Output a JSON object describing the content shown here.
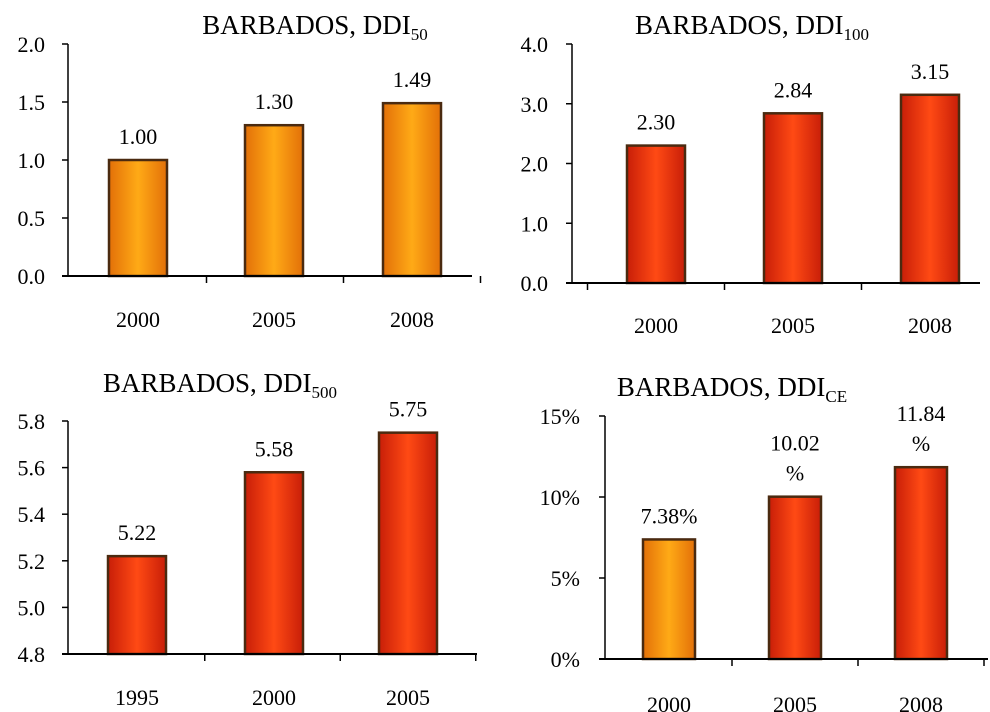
{
  "charts": [
    {
      "title_main": "BARBADOS, DDI",
      "title_sub": "50",
      "chart_data": {
        "type": "bar",
        "categories": [
          "2000",
          "2005",
          "2008"
        ],
        "values": [
          1.0,
          1.3,
          1.49
        ],
        "data_labels": [
          "1.00",
          "1.30",
          "1.49"
        ],
        "ylim": [
          0,
          2.0
        ],
        "yticks": [
          "0.0",
          "0.5",
          "1.0",
          "1.5",
          "2.0"
        ],
        "grid": false
      },
      "bar_colors": [
        "orange",
        "orange",
        "orange"
      ]
    },
    {
      "title_main": "BARBADOS, DDI",
      "title_sub": "100",
      "chart_data": {
        "type": "bar",
        "categories": [
          "2000",
          "2005",
          "2008"
        ],
        "values": [
          2.3,
          2.84,
          3.15
        ],
        "data_labels": [
          "2.30",
          "2.84",
          "3.15"
        ],
        "ylim": [
          0,
          4.0
        ],
        "yticks": [
          "0.0",
          "1.0",
          "2.0",
          "3.0",
          "4.0"
        ],
        "grid": false
      },
      "bar_colors": [
        "red",
        "red",
        "red"
      ]
    },
    {
      "title_main": "BARBADOS, DDI",
      "title_sub": "500",
      "chart_data": {
        "type": "bar",
        "categories": [
          "1995",
          "2000",
          "2005"
        ],
        "values": [
          5.22,
          5.58,
          5.75
        ],
        "data_labels": [
          "5.22",
          "5.58",
          "5.75"
        ],
        "ylim": [
          4.8,
          5.8
        ],
        "yticks": [
          "4.8",
          "5.0",
          "5.2",
          "5.4",
          "5.6",
          "5.8"
        ],
        "grid": false
      },
      "bar_colors": [
        "red",
        "red",
        "red"
      ]
    },
    {
      "title_main": "BARBADOS, DDI",
      "title_sub": "CE",
      "chart_data": {
        "type": "bar",
        "categories": [
          "2000",
          "2005",
          "2008"
        ],
        "values": [
          7.38,
          10.02,
          11.84
        ],
        "data_labels": [
          [
            "7.38%"
          ],
          [
            "10.02",
            "%"
          ],
          [
            "11.84",
            "%"
          ]
        ],
        "ylim": [
          0,
          15
        ],
        "yticks": [
          "0%",
          "5%",
          "10%",
          "15%"
        ],
        "grid": false
      },
      "bar_colors": [
        "orange",
        "red",
        "red"
      ]
    }
  ],
  "colors": {
    "orange_top": "#ffc21a",
    "orange_mid": "#ff9a12",
    "orange_bottom": "#f07d0c",
    "red_top": "#ff5a16",
    "red_mid": "#f23010",
    "red_bottom": "#d8240b",
    "bar_edge": "#4a2a10",
    "axis": "#000000"
  }
}
